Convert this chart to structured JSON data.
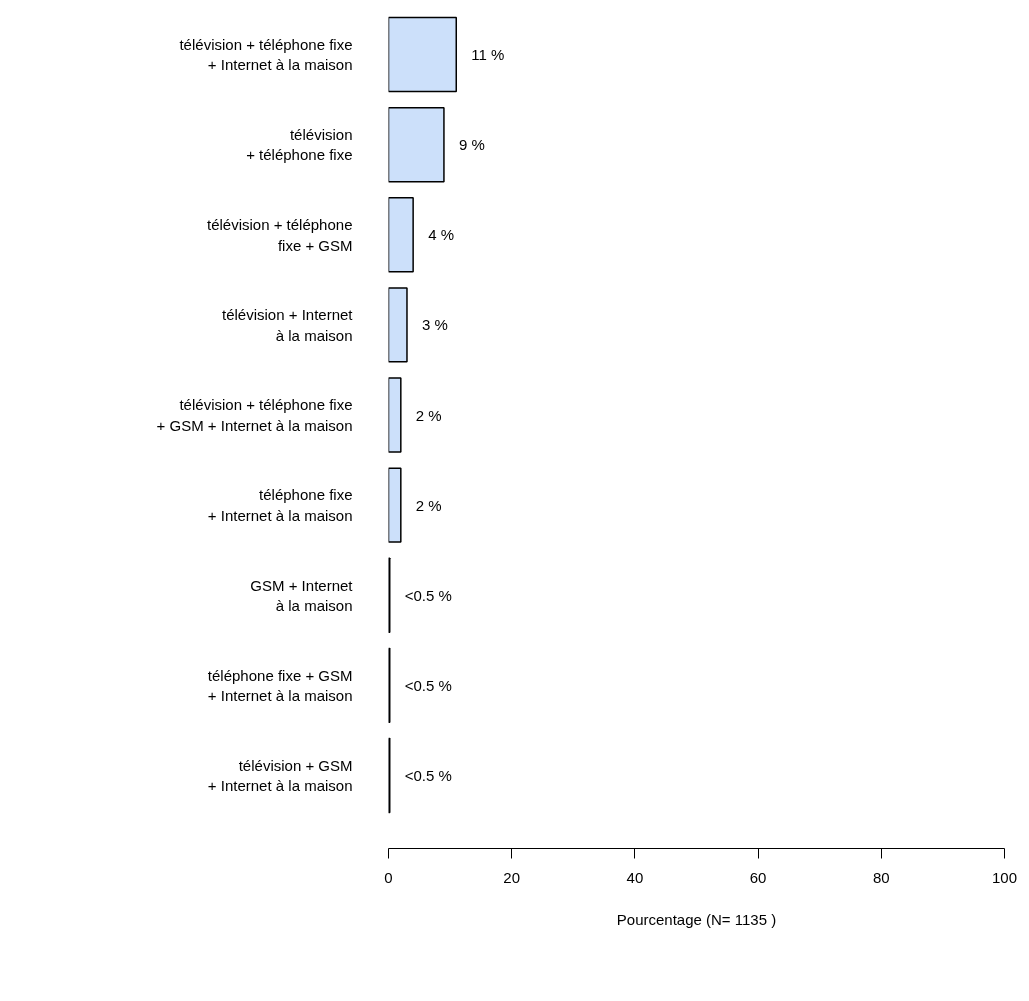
{
  "chart_data": {
    "type": "bar",
    "orientation": "horizontal",
    "xlabel": "Pourcentage (N= 1135 )",
    "categories": [
      "télévision + téléphone fixe\n+ Internet à la maison",
      "télévision\n+ téléphone fixe",
      "télévision + téléphone\nfixe + GSM",
      "télévision + Internet\nà la maison",
      "télévision + téléphone fixe\n+ GSM + Internet à la maison",
      "téléphone fixe\n+ Internet à la maison",
      "GSM + Internet\nà la maison",
      "téléphone fixe + GSM\n+ Internet à la maison",
      "télévision + GSM\n+ Internet à la maison"
    ],
    "values": [
      11,
      9,
      4,
      3,
      2,
      2,
      0.2,
      0.2,
      0.2
    ],
    "value_labels": [
      "11 %",
      "9 %",
      "4 %",
      "3 %",
      "2 %",
      "2 %",
      "<0.5 %",
      "<0.5 %",
      "<0.5 %"
    ],
    "color": "#cce0fa",
    "xlim": [
      0,
      100
    ],
    "xticks": [
      0,
      20,
      40,
      60,
      80,
      100
    ],
    "grid": false
  }
}
